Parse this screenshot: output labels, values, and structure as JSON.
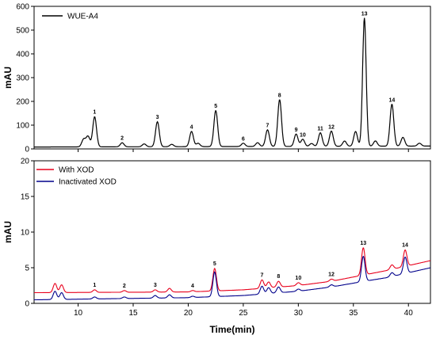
{
  "chart_data": [
    {
      "type": "line",
      "panel": "top",
      "ylabel": "mAU",
      "ylim": [
        0,
        600
      ],
      "yticks": [
        0,
        100,
        200,
        300,
        400,
        500,
        600
      ],
      "xlim": [
        6,
        42
      ],
      "xticks": [
        10,
        15,
        20,
        25,
        30,
        35,
        40
      ],
      "legend_position": "top-left",
      "series": [
        {
          "name": "WUE-A4",
          "color": "#000000"
        }
      ],
      "peaks": [
        {
          "label": "1",
          "x": 11.5,
          "y": 135
        },
        {
          "label": "2",
          "x": 14.0,
          "y": 25
        },
        {
          "label": "3",
          "x": 17.2,
          "y": 113
        },
        {
          "label": "4",
          "x": 20.3,
          "y": 72
        },
        {
          "label": "5",
          "x": 22.5,
          "y": 160
        },
        {
          "label": "6",
          "x": 25.0,
          "y": 22
        },
        {
          "label": "7",
          "x": 27.2,
          "y": 78
        },
        {
          "label": "8",
          "x": 28.3,
          "y": 205
        },
        {
          "label": "9",
          "x": 29.8,
          "y": 60
        },
        {
          "label": "10",
          "x": 30.4,
          "y": 38
        },
        {
          "label": "11",
          "x": 32.0,
          "y": 65
        },
        {
          "label": "12",
          "x": 33.0,
          "y": 72
        },
        {
          "label": "13",
          "x": 36.0,
          "y": 548
        },
        {
          "label": "14",
          "x": 38.5,
          "y": 185
        }
      ],
      "extra_peaks": [
        {
          "x": 10.5,
          "y": 40
        },
        {
          "x": 10.9,
          "y": 52
        },
        {
          "x": 16.0,
          "y": 20
        },
        {
          "x": 18.5,
          "y": 18
        },
        {
          "x": 20.9,
          "y": 22
        },
        {
          "x": 26.3,
          "y": 24
        },
        {
          "x": 31.2,
          "y": 20
        },
        {
          "x": 34.2,
          "y": 30
        },
        {
          "x": 35.2,
          "y": 70
        },
        {
          "x": 37.0,
          "y": 30
        },
        {
          "x": 39.5,
          "y": 45
        },
        {
          "x": 41.0,
          "y": 20
        }
      ]
    },
    {
      "type": "line",
      "panel": "bottom",
      "xlabel": "Time(min)",
      "ylabel": "mAU",
      "ylim": [
        0,
        20
      ],
      "yticks": [
        0,
        5,
        10,
        15,
        20
      ],
      "xlim": [
        6,
        42
      ],
      "xticks": [
        10,
        15,
        20,
        25,
        30,
        35,
        40
      ],
      "legend_position": "top-left",
      "series": [
        {
          "name": "With XOD",
          "color": "#e8001c",
          "baseline": [
            [
              6,
              1.5
            ],
            [
              20,
              1.6
            ],
            [
              25,
              1.9
            ],
            [
              30,
              2.5
            ],
            [
              33,
              3.1
            ],
            [
              36,
              4.0
            ],
            [
              38,
              4.6
            ],
            [
              42,
              6.0
            ]
          ],
          "peaks": [
            {
              "x": 7.9,
              "y": 2.8
            },
            {
              "x": 8.5,
              "y": 2.6
            },
            {
              "x": 11.5,
              "y": 1.9
            },
            {
              "x": 14.2,
              "y": 1.8
            },
            {
              "x": 17.0,
              "y": 1.9
            },
            {
              "x": 18.3,
              "y": 2.1
            },
            {
              "x": 20.4,
              "y": 1.8
            },
            {
              "x": 22.4,
              "y": 4.9
            },
            {
              "x": 26.7,
              "y": 3.3
            },
            {
              "x": 27.3,
              "y": 3.0
            },
            {
              "x": 28.2,
              "y": 3.1
            },
            {
              "x": 30.0,
              "y": 2.9
            },
            {
              "x": 33.0,
              "y": 3.4
            },
            {
              "x": 35.9,
              "y": 7.8
            },
            {
              "x": 38.5,
              "y": 5.4
            },
            {
              "x": 39.7,
              "y": 7.5
            }
          ]
        },
        {
          "name": "Inactivated XOD",
          "color": "#00008b",
          "baseline": [
            [
              6,
              0.5
            ],
            [
              20,
              0.8
            ],
            [
              25,
              1.1
            ],
            [
              30,
              1.7
            ],
            [
              33,
              2.3
            ],
            [
              36,
              3.1
            ],
            [
              38,
              3.6
            ],
            [
              42,
              5.0
            ]
          ],
          "peaks": [
            {
              "x": 7.9,
              "y": 1.7
            },
            {
              "x": 8.5,
              "y": 1.5
            },
            {
              "x": 11.5,
              "y": 0.9
            },
            {
              "x": 14.2,
              "y": 0.9
            },
            {
              "x": 17.0,
              "y": 1.1
            },
            {
              "x": 18.3,
              "y": 1.2
            },
            {
              "x": 20.4,
              "y": 1.0
            },
            {
              "x": 22.4,
              "y": 4.4
            },
            {
              "x": 26.7,
              "y": 2.4
            },
            {
              "x": 27.3,
              "y": 2.2
            },
            {
              "x": 28.2,
              "y": 2.3
            },
            {
              "x": 30.0,
              "y": 2.0
            },
            {
              "x": 33.0,
              "y": 2.6
            },
            {
              "x": 35.9,
              "y": 6.6
            },
            {
              "x": 38.5,
              "y": 4.3
            },
            {
              "x": 39.7,
              "y": 6.5
            }
          ]
        }
      ],
      "peak_labels": [
        {
          "label": "1",
          "x": 11.5,
          "y": 1.9
        },
        {
          "label": "2",
          "x": 14.2,
          "y": 1.8
        },
        {
          "label": "3",
          "x": 17.0,
          "y": 1.9
        },
        {
          "label": "4",
          "x": 20.4,
          "y": 1.8
        },
        {
          "label": "5",
          "x": 22.4,
          "y": 4.9
        },
        {
          "label": "7",
          "x": 26.7,
          "y": 3.3
        },
        {
          "label": "8",
          "x": 28.2,
          "y": 3.1
        },
        {
          "label": "10",
          "x": 30.0,
          "y": 2.9
        },
        {
          "label": "12",
          "x": 33.0,
          "y": 3.4
        },
        {
          "label": "13",
          "x": 35.9,
          "y": 7.8
        },
        {
          "label": "14",
          "x": 39.7,
          "y": 7.5
        }
      ]
    }
  ]
}
